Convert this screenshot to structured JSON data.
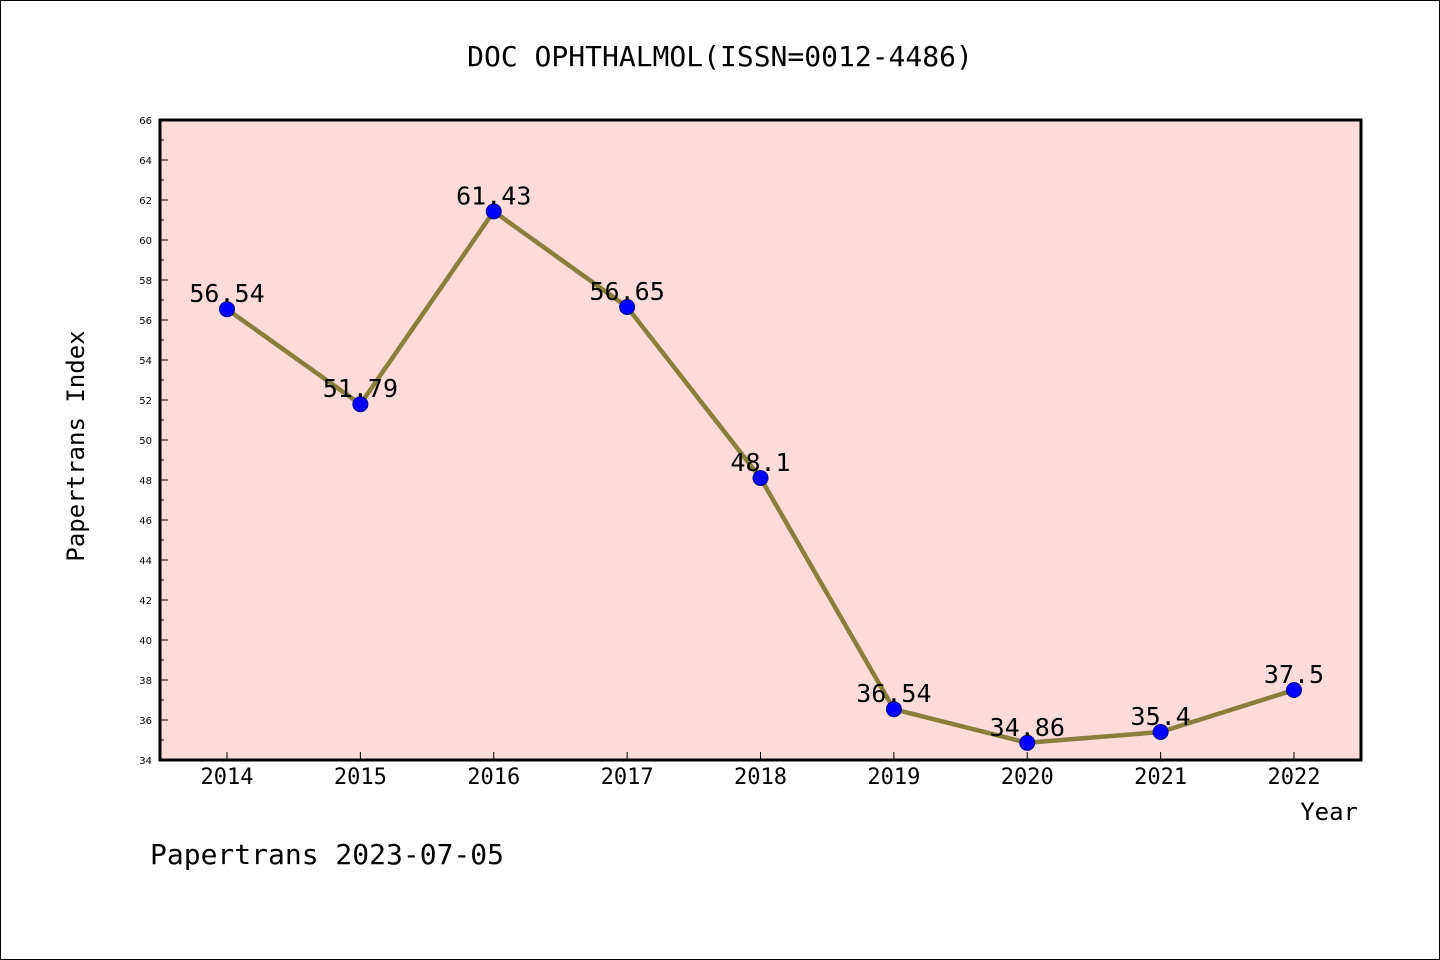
{
  "chart_data": {
    "type": "line",
    "title": "DOC OPHTHALMOL(ISSN=0012-4486)",
    "xlabel": "Year",
    "ylabel": "Papertrans Index",
    "footer": "Papertrans 2023-07-05",
    "categories": [
      "2014",
      "2015",
      "2016",
      "2017",
      "2018",
      "2019",
      "2020",
      "2021",
      "2022"
    ],
    "values": [
      56.54,
      51.79,
      61.43,
      56.65,
      48.1,
      36.54,
      34.86,
      35.4,
      37.5
    ],
    "data_labels": [
      "56.54",
      "51.79",
      "61.43",
      "56.65",
      "48.1",
      "36.54",
      "34.86",
      "35.4",
      "37.5"
    ],
    "ylim": [
      34,
      66
    ],
    "yticks": [
      34,
      36,
      38,
      40,
      42,
      44,
      46,
      48,
      50,
      52,
      54,
      56,
      58,
      60,
      62,
      64,
      66
    ],
    "grid": false,
    "colors": {
      "plot_background": "#fddbd8",
      "line": "#8b7d3a",
      "marker": "#0000ff",
      "axis": "#000000"
    }
  }
}
